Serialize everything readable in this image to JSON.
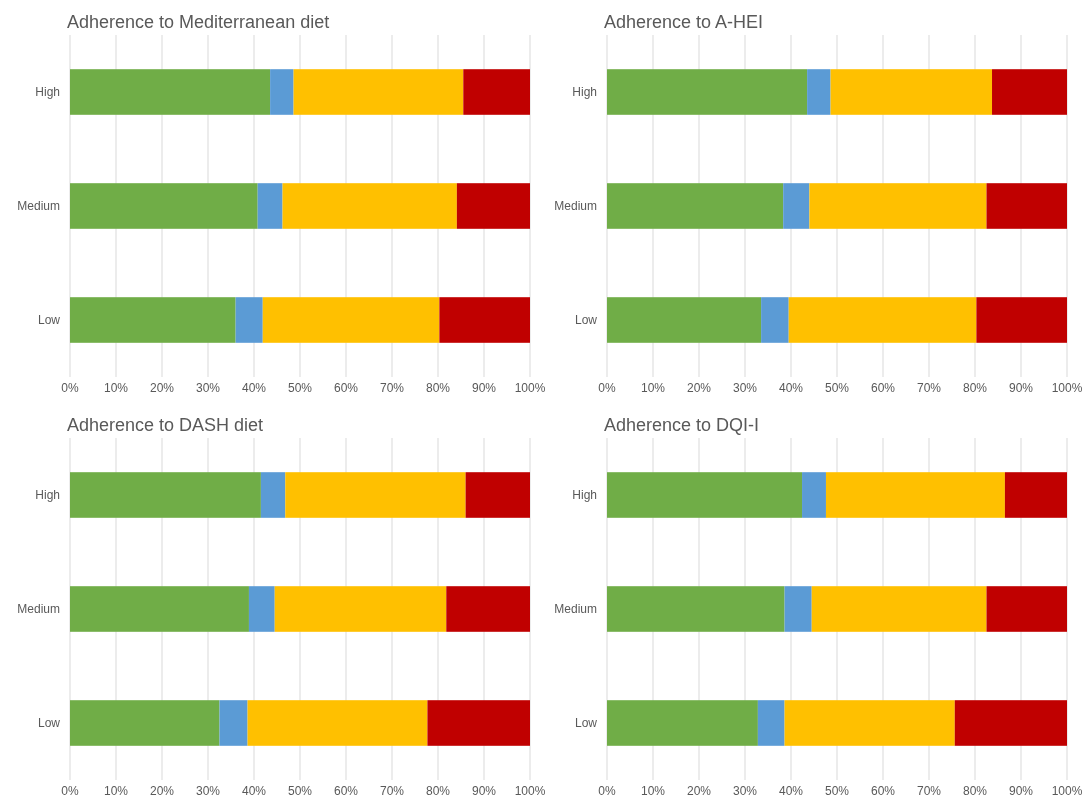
{
  "chart_data": [
    {
      "type": "bar",
      "orientation": "horizontal",
      "stacked": true,
      "title": "Adherence to Mediterranean diet",
      "categories": [
        "High",
        "Medium",
        "Low"
      ],
      "grid": "x",
      "xlim": [
        0,
        100
      ],
      "xticks": [
        {
          "value": 0,
          "label": "0%"
        },
        {
          "value": 10,
          "label": "10%"
        },
        {
          "value": 20,
          "label": "20%"
        },
        {
          "value": 30,
          "label": "30%"
        },
        {
          "value": 40,
          "label": "40%"
        },
        {
          "value": 50,
          "label": "50%"
        },
        {
          "value": 60,
          "label": "60%"
        },
        {
          "value": 70,
          "label": "70%"
        },
        {
          "value": 80,
          "label": "80%"
        },
        {
          "value": 90,
          "label": "90%"
        },
        {
          "value": 100,
          "label": "100%"
        }
      ],
      "series": [
        {
          "color": "#70ad47",
          "values": [
            43.5,
            40.8,
            36.0
          ]
        },
        {
          "color": "#5b9bd5",
          "values": [
            5.1,
            5.4,
            5.9
          ]
        },
        {
          "color": "#ffc000",
          "values": [
            36.9,
            37.9,
            38.4
          ]
        },
        {
          "color": "#c00000",
          "values": [
            14.5,
            15.9,
            19.7
          ]
        }
      ]
    },
    {
      "type": "bar",
      "orientation": "horizontal",
      "stacked": true,
      "title": "Adherence to A-HEI",
      "categories": [
        "High",
        "Medium",
        "Low"
      ],
      "grid": "x",
      "xlim": [
        0,
        100
      ],
      "xticks": [
        {
          "value": 0,
          "label": "0%"
        },
        {
          "value": 10,
          "label": "10%"
        },
        {
          "value": 20,
          "label": "20%"
        },
        {
          "value": 30,
          "label": "30%"
        },
        {
          "value": 40,
          "label": "40%"
        },
        {
          "value": 50,
          "label": "50%"
        },
        {
          "value": 60,
          "label": "60%"
        },
        {
          "value": 70,
          "label": "70%"
        },
        {
          "value": 80,
          "label": "80%"
        },
        {
          "value": 90,
          "label": "90%"
        },
        {
          "value": 100,
          "label": "100%"
        }
      ],
      "series": [
        {
          "color": "#70ad47",
          "values": [
            43.5,
            38.3,
            33.5
          ]
        },
        {
          "color": "#5b9bd5",
          "values": [
            5.1,
            5.7,
            6.0
          ]
        },
        {
          "color": "#ffc000",
          "values": [
            35.1,
            38.5,
            40.8
          ]
        },
        {
          "color": "#c00000",
          "values": [
            16.3,
            17.5,
            19.7
          ]
        }
      ]
    },
    {
      "type": "bar",
      "orientation": "horizontal",
      "stacked": true,
      "title": "Adherence to DASH diet",
      "categories": [
        "High",
        "Medium",
        "Low"
      ],
      "grid": "x",
      "xlim": [
        0,
        100
      ],
      "xticks": [
        {
          "value": 0,
          "label": "0%"
        },
        {
          "value": 10,
          "label": "10%"
        },
        {
          "value": 20,
          "label": "20%"
        },
        {
          "value": 30,
          "label": "30%"
        },
        {
          "value": 40,
          "label": "40%"
        },
        {
          "value": 50,
          "label": "50%"
        },
        {
          "value": 60,
          "label": "60%"
        },
        {
          "value": 70,
          "label": "70%"
        },
        {
          "value": 80,
          "label": "80%"
        },
        {
          "value": 90,
          "label": "90%"
        },
        {
          "value": 100,
          "label": "100%"
        }
      ],
      "series": [
        {
          "color": "#70ad47",
          "values": [
            41.5,
            38.9,
            32.5
          ]
        },
        {
          "color": "#5b9bd5",
          "values": [
            5.3,
            5.6,
            6.1
          ]
        },
        {
          "color": "#ffc000",
          "values": [
            39.2,
            37.3,
            39.1
          ]
        },
        {
          "color": "#c00000",
          "values": [
            14.0,
            18.2,
            22.3
          ]
        }
      ]
    },
    {
      "type": "bar",
      "orientation": "horizontal",
      "stacked": true,
      "title": "Adherence to DQI-I",
      "categories": [
        "High",
        "Medium",
        "Low"
      ],
      "grid": "x",
      "xlim": [
        0,
        100
      ],
      "xticks": [
        {
          "value": 0,
          "label": "0%"
        },
        {
          "value": 10,
          "label": "10%"
        },
        {
          "value": 20,
          "label": "20%"
        },
        {
          "value": 30,
          "label": "30%"
        },
        {
          "value": 40,
          "label": "40%"
        },
        {
          "value": 50,
          "label": "50%"
        },
        {
          "value": 60,
          "label": "60%"
        },
        {
          "value": 70,
          "label": "70%"
        },
        {
          "value": 80,
          "label": "80%"
        },
        {
          "value": 90,
          "label": "90%"
        },
        {
          "value": 100,
          "label": "100%"
        }
      ],
      "series": [
        {
          "color": "#70ad47",
          "values": [
            42.4,
            38.6,
            32.8
          ]
        },
        {
          "color": "#5b9bd5",
          "values": [
            5.2,
            5.9,
            5.8
          ]
        },
        {
          "color": "#ffc000",
          "values": [
            38.9,
            38.0,
            37.0
          ]
        },
        {
          "color": "#c00000",
          "values": [
            13.5,
            17.5,
            24.4
          ]
        }
      ]
    }
  ]
}
